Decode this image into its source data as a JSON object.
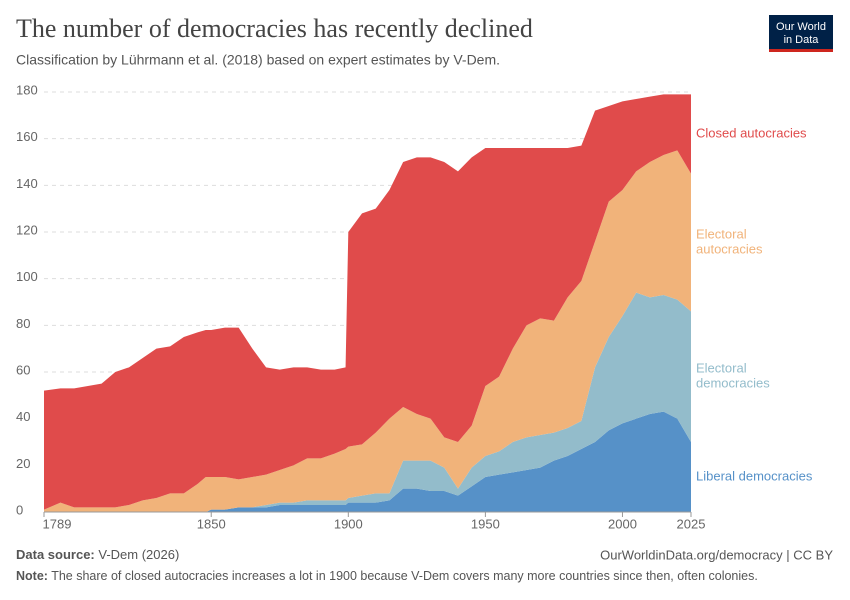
{
  "chart_data": {
    "type": "area",
    "title": "The number of democracies has recently declined",
    "subtitle": "Classification by Lührmann et al. (2018) based on expert estimates by V-Dem.",
    "logo": [
      "Our World",
      "in Data"
    ],
    "source_label": "Data source:",
    "source": "V-Dem (2026)",
    "url": "OurWorldinData.org/democracy | CC BY",
    "note_label": "Note:",
    "note": "The share of closed autocracies increases a lot in 1900 because V-Dem covers many more countries since then, often colonies.",
    "stacked": true,
    "grid": true,
    "x": [
      1789,
      1795,
      1800,
      1810,
      1815,
      1820,
      1825,
      1830,
      1835,
      1840,
      1845,
      1848,
      1850,
      1855,
      1860,
      1865,
      1870,
      1875,
      1880,
      1885,
      1890,
      1895,
      1899,
      1900,
      1905,
      1910,
      1915,
      1920,
      1925,
      1930,
      1935,
      1940,
      1945,
      1950,
      1955,
      1960,
      1965,
      1970,
      1975,
      1980,
      1985,
      1990,
      1995,
      2000,
      2005,
      2010,
      2015,
      2020,
      2025
    ],
    "xlim": [
      1789,
      2025
    ],
    "xticks": [
      1789,
      1850,
      1900,
      1950,
      2000,
      2025
    ],
    "ylim": [
      0,
      180
    ],
    "yticks": [
      0,
      20,
      40,
      60,
      80,
      100,
      120,
      140,
      160,
      180
    ],
    "series": [
      {
        "name": "Liberal democracies",
        "color": "#5691c8",
        "values": [
          0,
          0,
          0,
          0,
          0,
          0,
          0,
          0,
          0,
          0,
          0,
          0,
          1,
          1,
          2,
          2,
          2,
          3,
          3,
          3,
          3,
          3,
          3,
          4,
          4,
          4,
          5,
          10,
          10,
          9,
          9,
          7,
          11,
          15,
          16,
          17,
          18,
          19,
          22,
          24,
          27,
          30,
          35,
          38,
          40,
          42,
          43,
          40,
          30
        ]
      },
      {
        "name": "Electoral democracies",
        "color": "#93bccb",
        "values": [
          0,
          0,
          0,
          0,
          0,
          0,
          0,
          0,
          0,
          0,
          0,
          0,
          0,
          0,
          0,
          0,
          1,
          1,
          1,
          2,
          2,
          2,
          2,
          2,
          3,
          4,
          3,
          12,
          12,
          13,
          10,
          3,
          8,
          9,
          10,
          13,
          14,
          14,
          12,
          12,
          12,
          32,
          40,
          46,
          54,
          50,
          50,
          51,
          56
        ]
      },
      {
        "name": "Electoral autocracies",
        "color": "#f1b37a",
        "values": [
          1,
          4,
          2,
          2,
          2,
          3,
          5,
          6,
          8,
          8,
          12,
          15,
          14,
          14,
          12,
          13,
          13,
          14,
          16,
          18,
          18,
          20,
          22,
          22,
          22,
          26,
          32,
          23,
          20,
          18,
          13,
          20,
          18,
          30,
          32,
          40,
          48,
          50,
          48,
          56,
          60,
          54,
          58,
          54,
          52,
          58,
          60,
          64,
          59
        ]
      },
      {
        "name": "Closed autocracies",
        "color": "#e04b4b",
        "values": [
          51,
          49,
          51,
          53,
          58,
          59,
          61,
          64,
          63,
          67,
          65,
          63,
          63,
          64,
          65,
          55,
          46,
          43,
          42,
          39,
          38,
          36,
          35,
          92,
          99,
          96,
          98,
          105,
          110,
          112,
          118,
          116,
          115,
          102,
          98,
          86,
          76,
          73,
          74,
          64,
          58,
          56,
          41,
          38,
          31,
          28,
          26,
          24,
          34
        ]
      }
    ]
  }
}
